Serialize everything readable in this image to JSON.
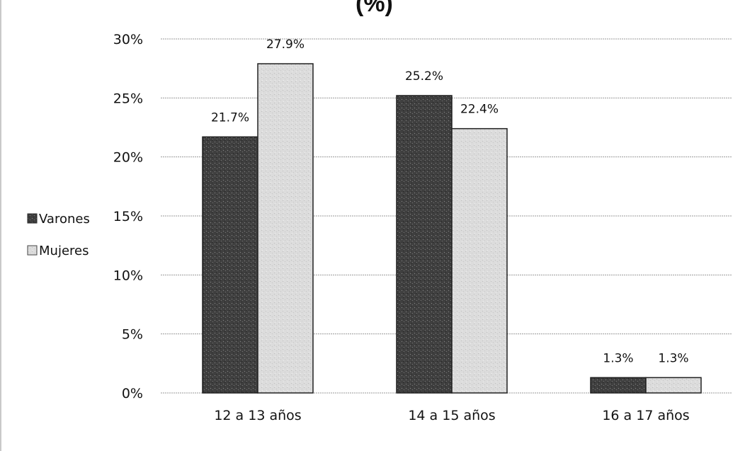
{
  "chart_data": {
    "type": "bar",
    "title": "(%)",
    "categories": [
      "12 a 13 años",
      "14 a 15 años",
      "16 a 17 años"
    ],
    "series": [
      {
        "name": "Varones",
        "values": [
          21.7,
          25.2,
          1.3
        ],
        "labels": [
          "21.7%",
          "25.2%",
          "1.3%"
        ],
        "color": "#3f3f3f"
      },
      {
        "name": "Mujeres",
        "values": [
          27.9,
          22.4,
          1.3
        ],
        "labels": [
          "27.9%",
          "22.4%",
          "1.3%"
        ],
        "color": "#d9d9d9"
      }
    ],
    "yticks": [
      "0%",
      "5%",
      "10%",
      "15%",
      "20%",
      "25%",
      "30%"
    ],
    "ylim": [
      0,
      30
    ],
    "ytick_step": 5,
    "grid": true,
    "legend_position": "left"
  }
}
